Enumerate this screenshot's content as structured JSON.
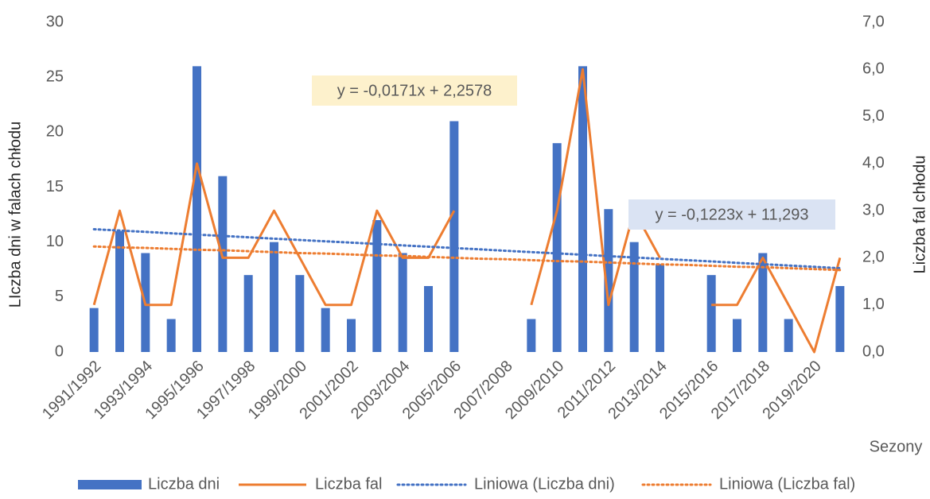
{
  "chart_data": {
    "type": "combo",
    "categories": [
      "1991/1992",
      null,
      "1993/1994",
      null,
      "1995/1996",
      null,
      "1997/1998",
      null,
      "1999/2000",
      null,
      "2001/2002",
      null,
      "2003/2004",
      null,
      "2005/2006",
      null,
      "2007/2008",
      null,
      "2009/2010",
      null,
      "2011/2012",
      null,
      "2013/2014",
      null,
      "2015/2016",
      null,
      "2017/2018",
      null,
      "2019/2020",
      null
    ],
    "series": [
      {
        "name": "Liczba dni",
        "type": "bar",
        "color": "#4472c4",
        "values": [
          4,
          11,
          9,
          3,
          26,
          16,
          7,
          10,
          7,
          4,
          3,
          12,
          9,
          6,
          21,
          null,
          null,
          3,
          19,
          26,
          13,
          10,
          8,
          null,
          7,
          3,
          9,
          3,
          0,
          6
        ]
      },
      {
        "name": "Liczba fal",
        "type": "line",
        "axis": "y2",
        "color": "#ed7d31",
        "values": [
          1,
          3,
          1,
          1,
          4,
          2,
          2,
          3,
          2,
          1,
          1,
          3,
          2,
          2,
          3,
          null,
          null,
          1,
          3,
          6,
          1,
          3,
          2,
          null,
          1,
          1,
          2,
          1,
          0,
          2
        ]
      },
      {
        "name": "Liniowa (Liczba dni)",
        "type": "trend",
        "color": "#4472c4",
        "values": [
          11.17,
          11.05,
          10.93,
          10.8,
          10.68,
          10.56,
          10.44,
          10.31,
          10.19,
          10.07,
          9.95,
          9.83,
          9.7,
          9.58,
          9.46,
          9.34,
          9.21,
          9.09,
          8.97,
          8.85,
          8.72,
          8.6,
          8.48,
          8.36,
          8.24,
          8.11,
          7.99,
          7.87,
          7.75,
          7.62
        ]
      },
      {
        "name": "Liniowa (Liczba fal)",
        "type": "trend",
        "axis": "y2",
        "color": "#ed7d31",
        "values": [
          2.24,
          2.22,
          2.21,
          2.19,
          2.17,
          2.16,
          2.14,
          2.12,
          2.1,
          2.09,
          2.07,
          2.05,
          2.04,
          2.02,
          2.0,
          1.98,
          1.97,
          1.95,
          1.93,
          1.92,
          1.9,
          1.88,
          1.86,
          1.85,
          1.83,
          1.81,
          1.8,
          1.78,
          1.76,
          1.74
        ]
      }
    ],
    "ylabel": "LIczba dni w falach chłodu",
    "y2label": "Liczba fal chłodu",
    "xlabel": "Sezony",
    "ylim": [
      0,
      30
    ],
    "yticks": [
      0,
      5,
      10,
      15,
      20,
      25,
      30
    ],
    "y2lim": [
      0,
      7
    ],
    "y2ticks": [
      {
        "value": 0,
        "label": "0,0"
      },
      {
        "value": 1,
        "label": "1,0"
      },
      {
        "value": 2,
        "label": "2,0"
      },
      {
        "value": 3,
        "label": "3,0"
      },
      {
        "value": 4,
        "label": "4,0"
      },
      {
        "value": 5,
        "label": "5,0"
      },
      {
        "value": 6,
        "label": "6,0"
      },
      {
        "value": 7,
        "label": "7,0"
      }
    ],
    "annotations": [
      {
        "text": "y = -0,0171x + 2,2578",
        "color": "#fdf1cc"
      },
      {
        "text": "y = -0,1223x + 11,293",
        "color": "#dae3f3"
      }
    ],
    "grid": false,
    "legend": "bottom"
  }
}
